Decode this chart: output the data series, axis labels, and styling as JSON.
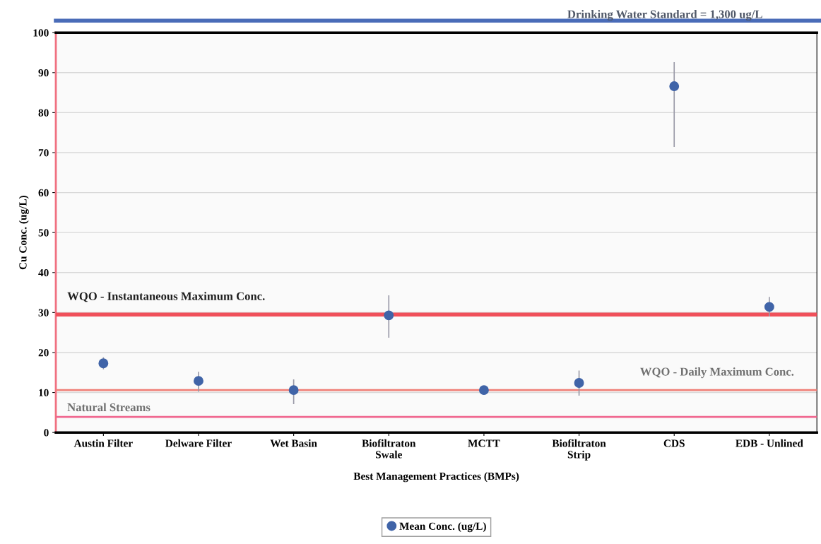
{
  "chart_data": {
    "type": "scatter",
    "xlabel": "Best Management Practices (BMPs)",
    "ylabel": "Cu Conc. (ug/L)",
    "categories": [
      "Austin Filter",
      "Delware Filter",
      "Wet Basin",
      "Biofiltraton\nSwale",
      "MCTT",
      "Biofiltraton\nStrip",
      "CDS",
      "EDB - Unlined"
    ],
    "series": [
      {
        "name": "Mean Conc. (ug/L)",
        "color": "#4064a8",
        "values": [
          17.3,
          12.9,
          10.6,
          29.3,
          10.6,
          12.4,
          86.6,
          31.4
        ],
        "errors": [
          [
            15.8,
            18.8
          ],
          [
            10.2,
            15.2
          ],
          [
            7.1,
            13.3
          ],
          [
            23.7,
            34.3
          ],
          null,
          [
            9.2,
            15.5
          ],
          [
            71.4,
            92.6
          ],
          [
            29.0,
            33.9
          ]
        ]
      }
    ],
    "ylim": [
      0,
      100
    ],
    "yticks": [
      0,
      10,
      20,
      30,
      40,
      50,
      60,
      70,
      80,
      90,
      100
    ],
    "grid": "y",
    "legend": "bottom",
    "marker": "circle",
    "ref_lines": [
      {
        "axis": "y",
        "value": 29.5,
        "label": "WQO - Instantaneous Maximum Conc.",
        "color": "#f0505a"
      },
      {
        "axis": "y",
        "value": 10.6,
        "label": "WQO - Daily Maximum Conc.",
        "color": "#f08078"
      },
      {
        "axis": "y",
        "value": 3.9,
        "label": "Natural Streams",
        "color": "#f06890"
      }
    ],
    "annotations": [
      "Drinking Water Standard = 1,300 ug/L"
    ]
  }
}
